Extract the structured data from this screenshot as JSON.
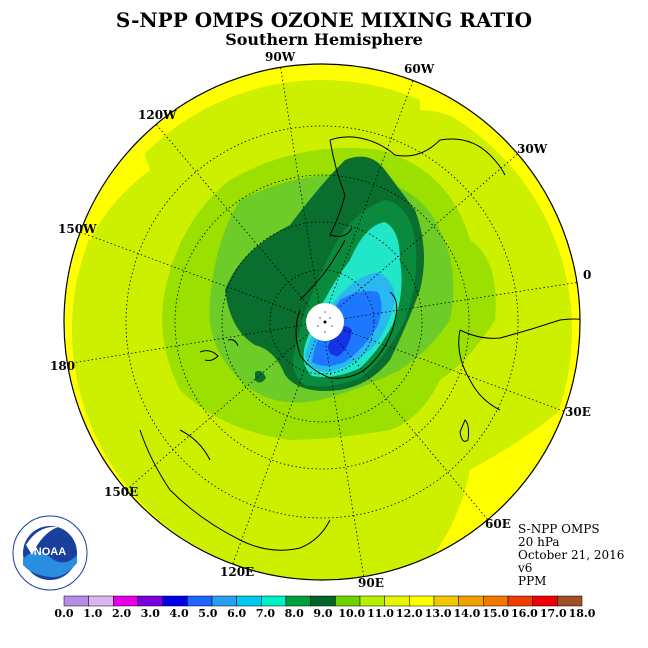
{
  "title": "S-NPP OMPS OZONE MIXING RATIO",
  "subtitle": "Southern Hemisphere",
  "longitude_labels": [
    "90W",
    "60W",
    "30W",
    "0",
    "30E",
    "60E",
    "90E",
    "120E",
    "150E",
    "180",
    "150W",
    "120W"
  ],
  "info": {
    "instrument": "S-NPP OMPS",
    "pressure": "20 hPa",
    "date": "October 21, 2016",
    "version": "v6",
    "units": "PPM"
  },
  "logo_text": "NOAA",
  "colorbar": {
    "labels": [
      "0.0",
      "1.0",
      "2.0",
      "3.0",
      "4.0",
      "5.0",
      "6.0",
      "7.0",
      "8.0",
      "9.0",
      "10.0",
      "11.0",
      "12.0",
      "13.0",
      "14.0",
      "15.0",
      "16.0",
      "17.0",
      "18.0"
    ],
    "colors": [
      "#b58ce6",
      "#dcb4f0",
      "#e600e6",
      "#7800dc",
      "#0000e6",
      "#1e64ff",
      "#28a0f0",
      "#00c8f0",
      "#00f0c8",
      "#00a03c",
      "#006428",
      "#6ed200",
      "#b4f000",
      "#e6f500",
      "#ffff00",
      "#f0c800",
      "#f0a000",
      "#f07800",
      "#f03c00",
      "#f00000",
      "#a05028"
    ],
    "min": 0,
    "max": 18
  },
  "ozone_levels": {
    "background": "#ccf000",
    "ring_11": "#9be000",
    "zone_10": "#6ecc28",
    "max_green": "#0a6e2e",
    "mid_green": "#0a8a3c",
    "cyan": "#22e6c8",
    "light_blue": "#2ab8f0",
    "blue": "#1e78ff",
    "deep_blue": "#1432e6",
    "yellow_edge": "#ffff00"
  }
}
